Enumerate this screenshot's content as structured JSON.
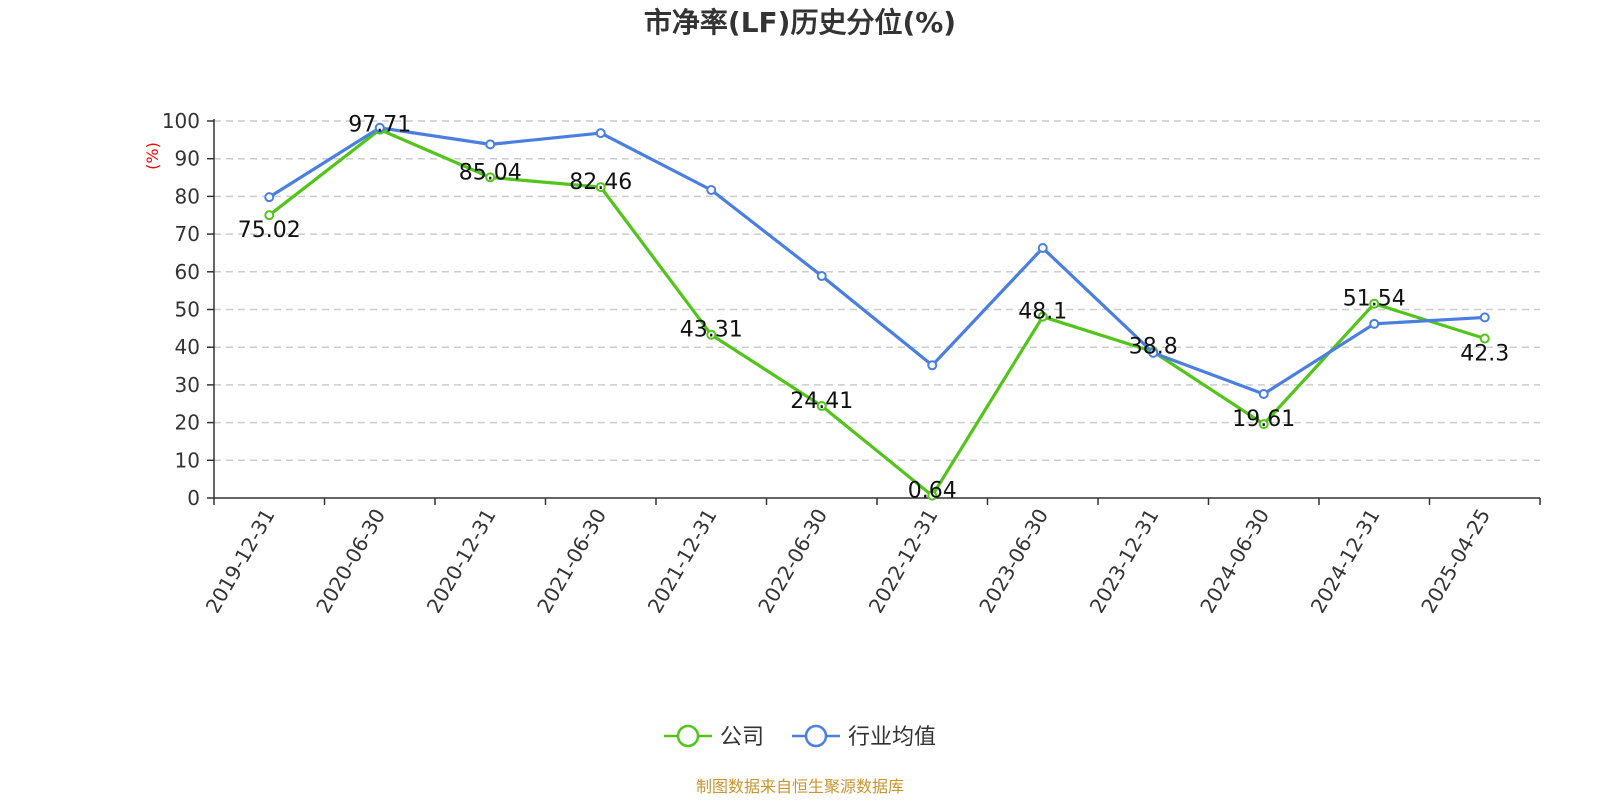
{
  "chart_data": {
    "type": "line",
    "title": "市净率(LF)历史分位(%)",
    "ylabel": "(%)",
    "xlabel": "",
    "ylim": [
      0,
      100
    ],
    "y_ticks": [
      0,
      10,
      20,
      30,
      40,
      50,
      60,
      70,
      80,
      90,
      100
    ],
    "grid": true,
    "legend_position": "bottom",
    "categories": [
      "2019-12-31",
      "2020-06-30",
      "2020-12-31",
      "2021-06-30",
      "2021-12-31",
      "2022-06-30",
      "2022-12-31",
      "2023-06-30",
      "2023-12-31",
      "2024-06-30",
      "2024-12-31",
      "2025-04-25"
    ],
    "series": [
      {
        "name": "公司",
        "color": "#52c41a",
        "values": [
          75.02,
          97.71,
          85.04,
          82.46,
          43.31,
          24.41,
          0.64,
          48.1,
          38.8,
          19.61,
          51.54,
          42.3
        ],
        "labels": [
          "75.02",
          "97.71",
          "85.04",
          "82.46",
          "43.31",
          "24.41",
          "0.64",
          "48.1",
          "38.8",
          "19.61",
          "51.54",
          "42.3"
        ]
      },
      {
        "name": "行业均值",
        "color": "#4a7fe0",
        "values": [
          79.8,
          98.2,
          93.8,
          96.8,
          81.7,
          58.9,
          35.2,
          66.3,
          38.5,
          27.6,
          46.2,
          47.9
        ]
      }
    ]
  },
  "source": "制图数据来自恒生聚源数据库"
}
